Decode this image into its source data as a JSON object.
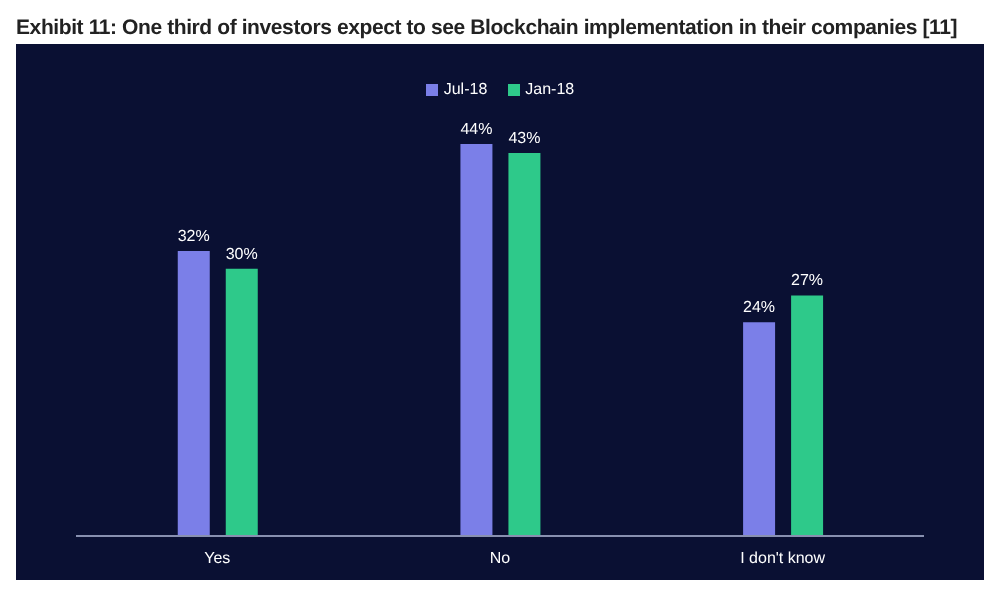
{
  "chart_data": {
    "type": "bar",
    "title": "Exhibit 11: One third of investors expect to see Blockchain implementation in their companies [11]",
    "categories": [
      "Yes",
      "No",
      "I don't know"
    ],
    "series": [
      {
        "name": "Jul-18",
        "color": "#7b7fe8",
        "values": [
          32,
          44,
          24
        ],
        "value_labels": [
          "32%",
          "44%",
          "24%"
        ]
      },
      {
        "name": "Jan-18",
        "color": "#2ec98a",
        "values": [
          30,
          43,
          27
        ],
        "value_labels": [
          "30%",
          "43%",
          "27%"
        ]
      }
    ],
    "legend": "top",
    "grid": false
  }
}
